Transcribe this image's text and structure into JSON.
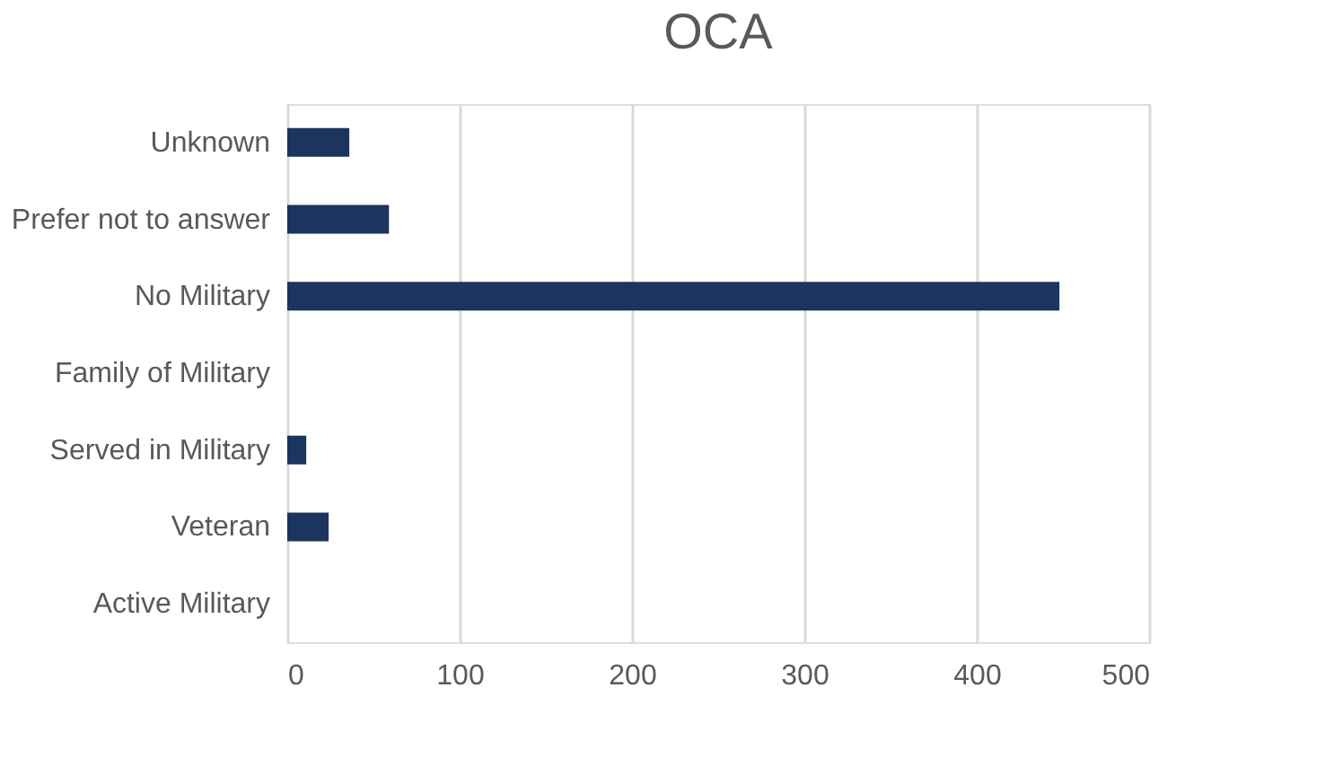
{
  "chart_data": {
    "type": "bar",
    "orientation": "horizontal",
    "title": "OCA",
    "categories": [
      "Unknown",
      "Prefer not to answer",
      "No Military",
      "Family of Military",
      "Served in Military",
      "Veteran",
      "Active Military"
    ],
    "values": [
      36,
      59,
      448,
      0,
      11,
      24,
      0
    ],
    "color": "#1c355e",
    "xlim": [
      0,
      500
    ],
    "xticks": [
      0,
      100,
      200,
      300,
      400,
      500
    ],
    "grid": "x"
  }
}
